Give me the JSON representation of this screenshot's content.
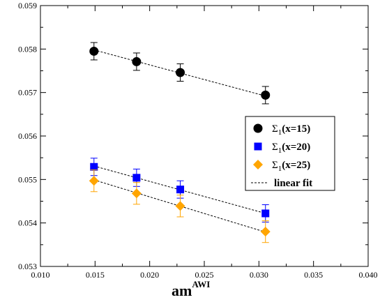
{
  "chart_data": {
    "type": "scatter",
    "xlabel": "am",
    "xlabel_sup": "AWI",
    "ylabel": "",
    "xlim": [
      0.01,
      0.04
    ],
    "ylim": [
      0.053,
      0.059
    ],
    "x_ticks": [
      "0.010",
      "0.015",
      "0.020",
      "0.025",
      "0.030",
      "0.035",
      "0.040"
    ],
    "y_ticks": [
      "0.053",
      "0.054",
      "0.055",
      "0.056",
      "0.057",
      "0.058",
      "0.059"
    ],
    "grid": false,
    "legend_position": "right",
    "series": [
      {
        "name": "Σ1(x=15)",
        "legend_main": "Σ",
        "legend_sub": "1",
        "legend_tail": "(x=15)",
        "marker": "circle",
        "color": "#000000",
        "x": [
          0.0149,
          0.0188,
          0.0228,
          0.0306
        ],
        "y": [
          0.05795,
          0.05771,
          0.05746,
          0.05694
        ],
        "err": [
          0.0002,
          0.0002,
          0.0002,
          0.0002
        ]
      },
      {
        "name": "Σ1(x=20)",
        "legend_main": "Σ",
        "legend_sub": "1",
        "legend_tail": "(x=20)",
        "marker": "square",
        "color": "#0000ff",
        "x": [
          0.0149,
          0.0188,
          0.0228,
          0.0306
        ],
        "y": [
          0.05529,
          0.05504,
          0.05477,
          0.05422
        ],
        "err": [
          0.0002,
          0.0002,
          0.0002,
          0.0002
        ]
      },
      {
        "name": "Σ1(x=25)",
        "legend_main": "Σ",
        "legend_sub": "1",
        "legend_tail": "(x=25)",
        "marker": "diamond",
        "color": "#ffa500",
        "x": [
          0.0149,
          0.0188,
          0.0228,
          0.0306
        ],
        "y": [
          0.05497,
          0.05468,
          0.05439,
          0.0538
        ],
        "err": [
          0.00025,
          0.00025,
          0.00025,
          0.00025
        ]
      }
    ],
    "fits": [
      {
        "series": "Σ1(x=15)",
        "x": [
          0.0149,
          0.0306
        ],
        "y": [
          0.05798,
          0.05692
        ]
      },
      {
        "series": "Σ1(x=20)",
        "x": [
          0.0149,
          0.0306
        ],
        "y": [
          0.05531,
          0.05422
        ]
      },
      {
        "series": "Σ1(x=25)",
        "x": [
          0.0149,
          0.0306
        ],
        "y": [
          0.05499,
          0.05379
        ]
      }
    ],
    "fit_legend_label": "linear fit",
    "fit_color": "#000000"
  }
}
